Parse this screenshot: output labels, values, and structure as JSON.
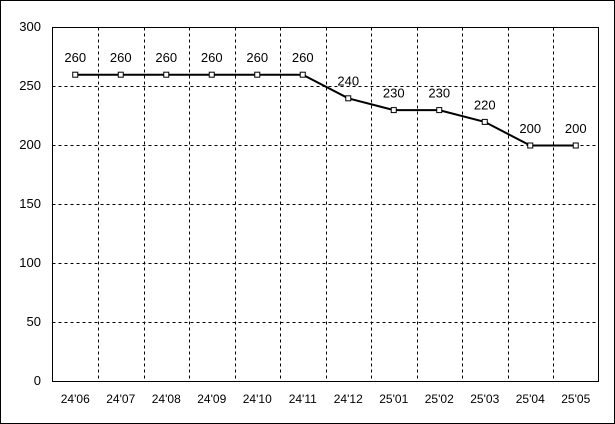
{
  "chart_data": {
    "type": "line",
    "categories": [
      "24'06",
      "24'07",
      "24'08",
      "24'09",
      "24'10",
      "24'11",
      "24'12",
      "25'01",
      "25'02",
      "25'03",
      "25'04",
      "25'05"
    ],
    "values": [
      260,
      260,
      260,
      260,
      260,
      260,
      240,
      230,
      230,
      220,
      200,
      200
    ],
    "color": "#000000",
    "ylim": [
      0,
      300
    ],
    "yticks": [
      0,
      50,
      100,
      150,
      200,
      250,
      300
    ],
    "grid": true
  }
}
